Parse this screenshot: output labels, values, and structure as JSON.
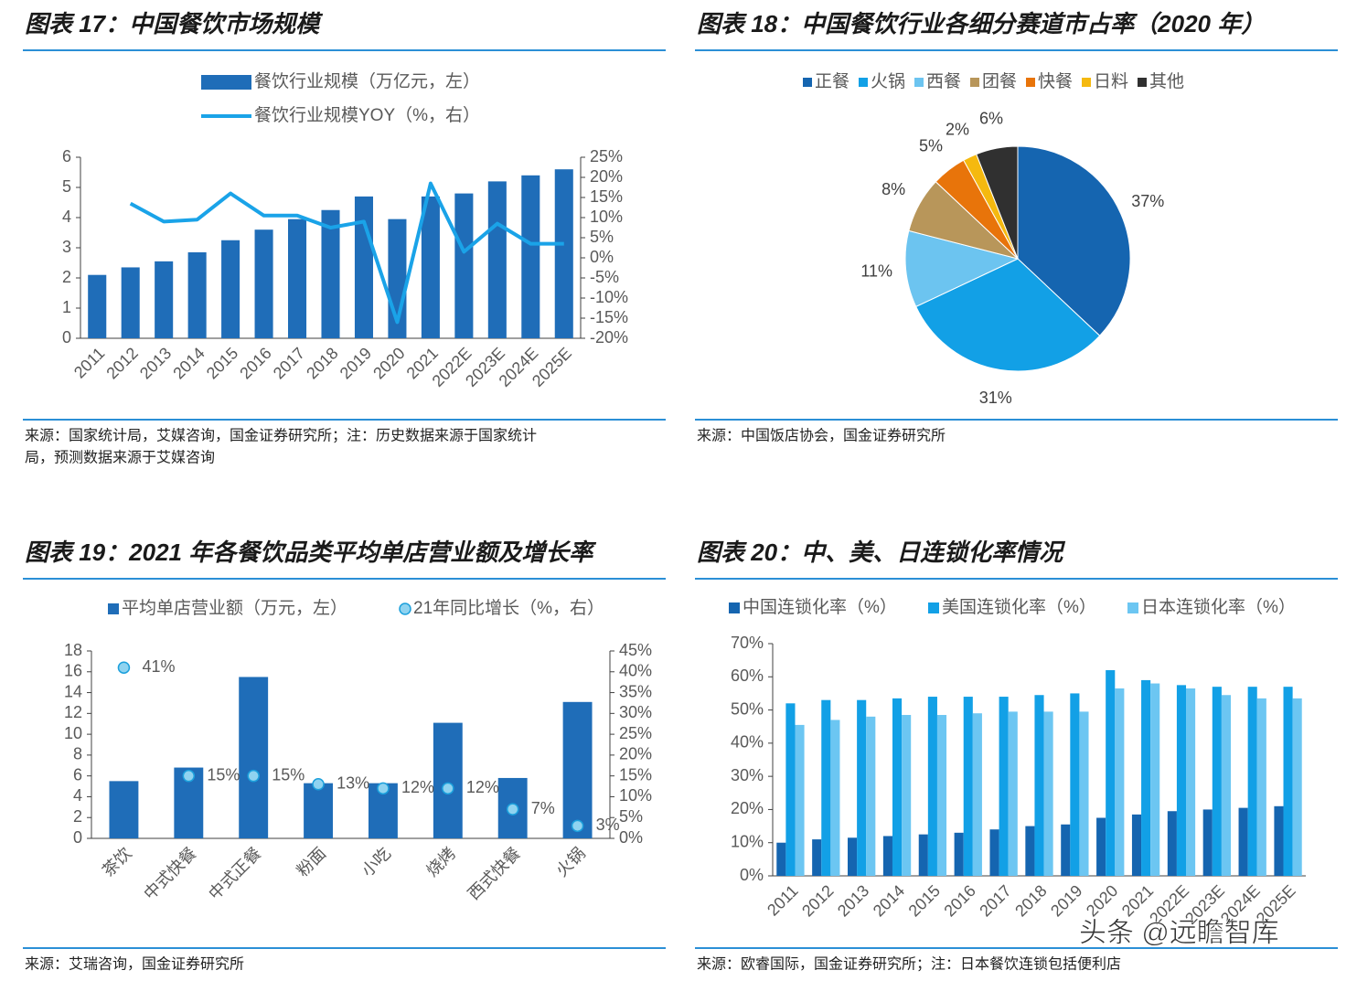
{
  "chart_data": [
    {
      "type": "combo",
      "title": "图表 17：中国餐饮市场规模",
      "categories": [
        "2011",
        "2012",
        "2013",
        "2014",
        "2015",
        "2016",
        "2017",
        "2018",
        "2019",
        "2020",
        "2021",
        "2022E",
        "2023E",
        "2024E",
        "2025E"
      ],
      "series": [
        {
          "name": "餐饮行业规模（万亿元，左）",
          "type": "bar",
          "color": "#1f6db8",
          "values": [
            2.1,
            2.35,
            2.55,
            2.85,
            3.25,
            3.6,
            3.95,
            4.25,
            4.7,
            3.95,
            4.7,
            4.8,
            5.2,
            5.4,
            5.6
          ]
        },
        {
          "name": "餐饮行业规模YOY（%，右）",
          "type": "line",
          "axis": "y2",
          "color": "#1aa3e8",
          "values": [
            null,
            13.5,
            9,
            9.5,
            16,
            10.5,
            10.5,
            7.5,
            9,
            -16,
            18.5,
            1.5,
            8.5,
            3.5,
            3.5
          ]
        }
      ],
      "ylim": [
        0,
        6
      ],
      "yticks": [
        0,
        1,
        2,
        3,
        4,
        5,
        6
      ],
      "y2lim": [
        -20,
        25
      ],
      "y2ticks": [
        {
          "value": -20,
          "label": "-20%"
        },
        {
          "value": -15,
          "label": "-15%"
        },
        {
          "value": -10,
          "label": "-10%"
        },
        {
          "value": -5,
          "label": "-5%"
        },
        {
          "value": 0,
          "label": "0%"
        },
        {
          "value": 5,
          "label": "5%"
        },
        {
          "value": 10,
          "label": "10%"
        },
        {
          "value": 15,
          "label": "15%"
        },
        {
          "value": 20,
          "label": "20%"
        },
        {
          "value": 25,
          "label": "25%"
        }
      ],
      "source": [
        "来源：国家统计局，艾媒咨询，国金证券研究所；注：历史数据来源于国家统计",
        "局，预测数据来源于艾媒咨询"
      ]
    },
    {
      "type": "pie",
      "title": "图表 18：中国餐饮行业各细分赛道市占率（2020 年）",
      "categories": [
        "正餐",
        "火锅",
        "西餐",
        "团餐",
        "快餐",
        "日料",
        "其他"
      ],
      "values": [
        37,
        31,
        11,
        8,
        5,
        2,
        6
      ],
      "value_labels": [
        "37%",
        "31%",
        "11%",
        "8%",
        "5%",
        "2%",
        "6%"
      ],
      "colors": [
        "#1565b0",
        "#12a0e6",
        "#6cc4f0",
        "#b8965a",
        "#e8740a",
        "#f5b90f",
        "#303030"
      ],
      "source": [
        "来源：中国饭店协会，国金证券研究所"
      ]
    },
    {
      "type": "combo",
      "title": "图表 19：2021 年各餐饮品类平均单店营业额及增长率",
      "categories": [
        "茶饮",
        "中式快餐",
        "中式正餐",
        "粉面",
        "小吃",
        "烧烤",
        "西式快餐",
        "火锅"
      ],
      "series": [
        {
          "name": "平均单店营业额（万元，左）",
          "type": "bar",
          "color": "#1f6db8",
          "values": [
            5.5,
            6.8,
            15.5,
            5.3,
            5.3,
            11.1,
            5.8,
            13.1
          ]
        },
        {
          "name": "21年同比增长（%，右）",
          "type": "scatter",
          "axis": "y2",
          "color": "#8fd3f0",
          "values": [
            41,
            15,
            15,
            13,
            12,
            12,
            7,
            3
          ],
          "value_labels": [
            "41%",
            "15%",
            "15%",
            "13%",
            "12%",
            "12%",
            "7%",
            "3%"
          ]
        }
      ],
      "ylim": [
        0,
        18
      ],
      "yticks": [
        0,
        2,
        4,
        6,
        8,
        10,
        12,
        14,
        16,
        18
      ],
      "y2lim": [
        0,
        45
      ],
      "y2ticks": [
        {
          "value": 0,
          "label": "0%"
        },
        {
          "value": 5,
          "label": "5%"
        },
        {
          "value": 10,
          "label": "10%"
        },
        {
          "value": 15,
          "label": "15%"
        },
        {
          "value": 20,
          "label": "20%"
        },
        {
          "value": 25,
          "label": "25%"
        },
        {
          "value": 30,
          "label": "30%"
        },
        {
          "value": 35,
          "label": "35%"
        },
        {
          "value": 40,
          "label": "40%"
        },
        {
          "value": 45,
          "label": "45%"
        }
      ],
      "source": [
        "来源：艾瑞咨询，国金证券研究所"
      ]
    },
    {
      "type": "bar",
      "title": "图表 20：中、美、日连锁化率情况",
      "categories": [
        "2011",
        "2012",
        "2013",
        "2014",
        "2015",
        "2016",
        "2017",
        "2018",
        "2019",
        "2020",
        "2021",
        "2022E",
        "2023E",
        "2024E",
        "2025E"
      ],
      "series": [
        {
          "name": "中国连锁化率（%）",
          "color": "#1565b0",
          "values": [
            10,
            11,
            11.5,
            12,
            12.5,
            13,
            14,
            15,
            15.5,
            17.5,
            18.5,
            19.5,
            20,
            20.5,
            21
          ]
        },
        {
          "name": "美国连锁化率（%）",
          "color": "#12a0e6",
          "values": [
            52,
            53,
            53,
            53.5,
            54,
            54,
            54,
            54.5,
            55,
            62,
            59,
            57.5,
            57,
            57,
            57
          ]
        },
        {
          "name": "日本连锁化率（%）",
          "color": "#6cc6f2",
          "values": [
            45.5,
            47,
            48,
            48.5,
            48.5,
            49,
            49.5,
            49.5,
            49.5,
            56.5,
            58,
            56.5,
            54.5,
            53.5,
            53.5
          ]
        }
      ],
      "ylim": [
        0,
        70
      ],
      "yticks": [
        {
          "value": 0,
          "label": "0%"
        },
        {
          "value": 10,
          "label": "10%"
        },
        {
          "value": 20,
          "label": "20%"
        },
        {
          "value": 30,
          "label": "30%"
        },
        {
          "value": 40,
          "label": "40%"
        },
        {
          "value": 50,
          "label": "50%"
        },
        {
          "value": 60,
          "label": "60%"
        },
        {
          "value": 70,
          "label": "70%"
        }
      ],
      "source": [
        "来源：欧睿国际，国金证券研究所；注：日本餐饮连锁包括便利店"
      ]
    }
  ],
  "watermark": "头条 @远瞻智库"
}
